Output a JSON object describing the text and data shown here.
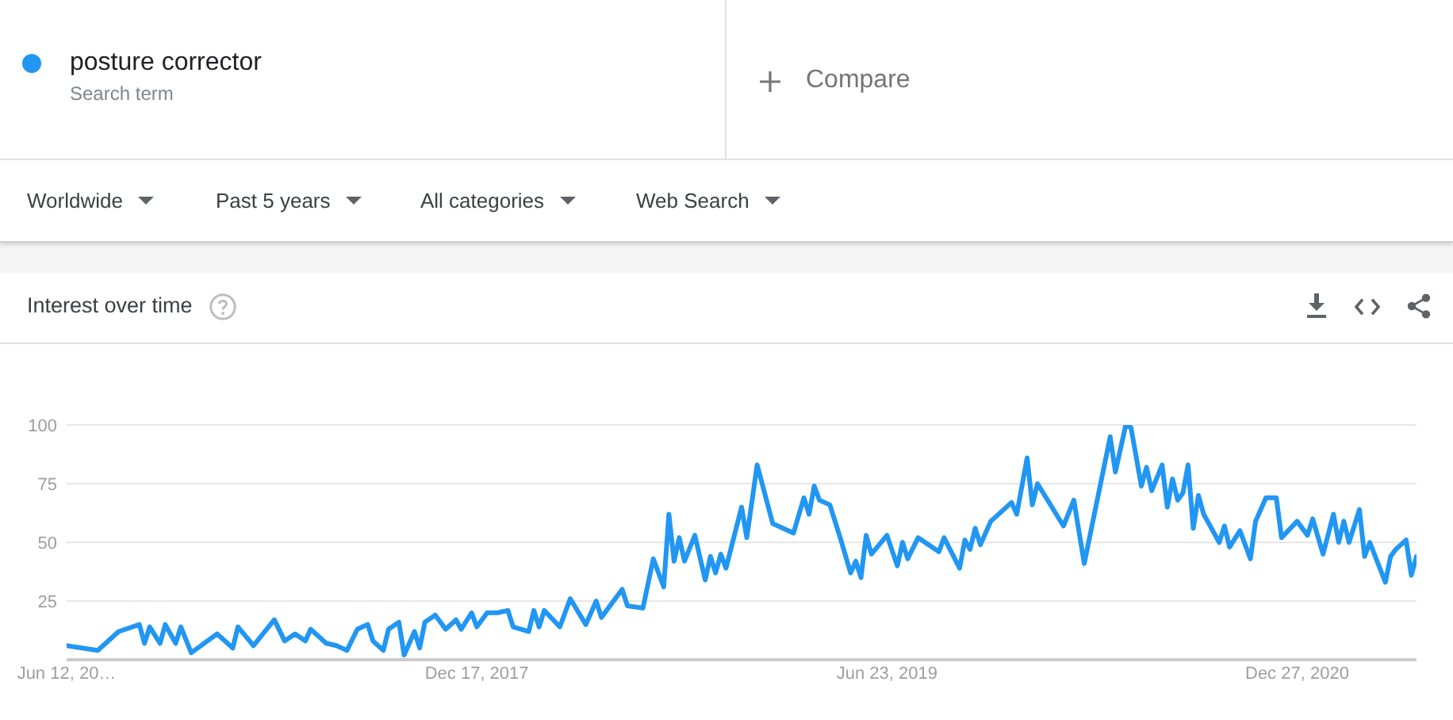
{
  "chart_data": {
    "type": "line",
    "title": "Interest over time",
    "x": [
      "2016-06-12",
      "2016-07-24",
      "2016-08-21",
      "2016-09-18",
      "2016-09-25",
      "2016-10-02",
      "2016-10-16",
      "2016-10-23",
      "2016-11-06",
      "2016-11-13",
      "2016-11-27",
      "2017-01-01",
      "2017-01-22",
      "2017-01-29",
      "2017-02-19",
      "2017-03-19",
      "2017-04-02",
      "2017-04-16",
      "2017-04-30",
      "2017-05-07",
      "2017-05-28",
      "2017-06-11",
      "2017-06-25",
      "2017-07-09",
      "2017-07-23",
      "2017-07-30",
      "2017-08-13",
      "2017-08-20",
      "2017-09-03",
      "2017-09-10",
      "2017-09-24",
      "2017-10-01",
      "2017-10-08",
      "2017-10-22",
      "2017-11-05",
      "2017-11-19",
      "2017-11-26",
      "2017-12-10",
      "2017-12-17",
      "2017-12-31",
      "2018-01-14",
      "2018-01-28",
      "2018-02-04",
      "2018-02-25",
      "2018-03-04",
      "2018-03-11",
      "2018-03-18",
      "2018-04-08",
      "2018-04-22",
      "2018-05-13",
      "2018-05-27",
      "2018-06-03",
      "2018-07-01",
      "2018-07-08",
      "2018-07-29",
      "2018-08-12",
      "2018-08-26",
      "2018-09-02",
      "2018-09-09",
      "2018-09-16",
      "2018-09-23",
      "2018-10-07",
      "2018-10-21",
      "2018-10-28",
      "2018-11-04",
      "2018-11-11",
      "2018-11-18",
      "2018-12-09",
      "2018-12-16",
      "2018-12-30",
      "2019-01-20",
      "2019-02-17",
      "2019-03-03",
      "2019-03-10",
      "2019-03-17",
      "2019-03-24",
      "2019-04-07",
      "2019-04-21",
      "2019-05-05",
      "2019-05-12",
      "2019-05-19",
      "2019-05-26",
      "2019-06-02",
      "2019-06-23",
      "2019-07-07",
      "2019-07-14",
      "2019-07-21",
      "2019-08-04",
      "2019-09-01",
      "2019-09-08",
      "2019-09-29",
      "2019-10-06",
      "2019-10-13",
      "2019-10-20",
      "2019-10-27",
      "2019-11-10",
      "2019-12-08",
      "2019-12-15",
      "2019-12-29",
      "2020-01-05",
      "2020-01-12",
      "2020-02-16",
      "2020-03-01",
      "2020-03-15",
      "2020-04-19",
      "2020-04-26",
      "2020-05-10",
      "2020-05-17",
      "2020-05-31",
      "2020-06-07",
      "2020-06-14",
      "2020-06-28",
      "2020-07-05",
      "2020-07-12",
      "2020-07-19",
      "2020-07-26",
      "2020-08-02",
      "2020-08-09",
      "2020-08-16",
      "2020-08-23",
      "2020-09-13",
      "2020-09-20",
      "2020-09-27",
      "2020-10-11",
      "2020-10-25",
      "2020-11-01",
      "2020-11-15",
      "2020-11-29",
      "2020-12-06",
      "2020-12-27",
      "2021-01-10",
      "2021-01-17",
      "2021-01-31",
      "2021-02-14",
      "2021-02-21",
      "2021-02-28",
      "2021-03-07",
      "2021-03-21",
      "2021-03-28",
      "2021-04-04",
      "2021-04-25",
      "2021-05-02",
      "2021-05-09",
      "2021-05-23",
      "2021-05-30",
      "2021-06-06"
    ],
    "series": [
      {
        "name": "posture corrector",
        "color": "#2196f3",
        "values": [
          6,
          4,
          12,
          15,
          7,
          14,
          7,
          15,
          7,
          14,
          3,
          11,
          5,
          14,
          6,
          17,
          8,
          11,
          8,
          13,
          7,
          6,
          4,
          13,
          15,
          8,
          4,
          13,
          16,
          2,
          12,
          5,
          16,
          19,
          13,
          17,
          13,
          20,
          14,
          20,
          20,
          21,
          14,
          12,
          21,
          14,
          21,
          14,
          26,
          15,
          25,
          18,
          30,
          23,
          22,
          43,
          31,
          62,
          42,
          52,
          42,
          53,
          34,
          44,
          37,
          45,
          39,
          65,
          52,
          83,
          58,
          54,
          69,
          62,
          74,
          68,
          66,
          52,
          37,
          42,
          35,
          53,
          45,
          53,
          40,
          50,
          43,
          52,
          46,
          52,
          39,
          51,
          47,
          56,
          49,
          59,
          67,
          62,
          86,
          66,
          75,
          57,
          68,
          41,
          95,
          80,
          100,
          99,
          74,
          82,
          72,
          83,
          65,
          77,
          68,
          71,
          83,
          56,
          70,
          62,
          50,
          57,
          48,
          55,
          43,
          59,
          69,
          69,
          52,
          59,
          53,
          60,
          45,
          62,
          50,
          59,
          50,
          64,
          44,
          50,
          33,
          44,
          47,
          51,
          36,
          44
        ]
      }
    ],
    "xlim": [
      "2016-06-12",
      "2021-06-06"
    ],
    "xticks": [
      {
        "value": "2016-06-12",
        "label": "Jun 12, 20…"
      },
      {
        "value": "2017-12-17",
        "label": "Dec 17, 2017"
      },
      {
        "value": "2019-06-23",
        "label": "Jun 23, 2019"
      },
      {
        "value": "2020-12-27",
        "label": "Dec 27, 2020"
      }
    ],
    "ylim": [
      0,
      100
    ],
    "yticks": [
      25,
      50,
      75,
      100
    ],
    "grid": "y",
    "legend": "top left",
    "annotations": [
      "Search term",
      "Compare",
      "Worldwide",
      "Past 5 years",
      "All categories",
      "Web Search"
    ]
  }
}
